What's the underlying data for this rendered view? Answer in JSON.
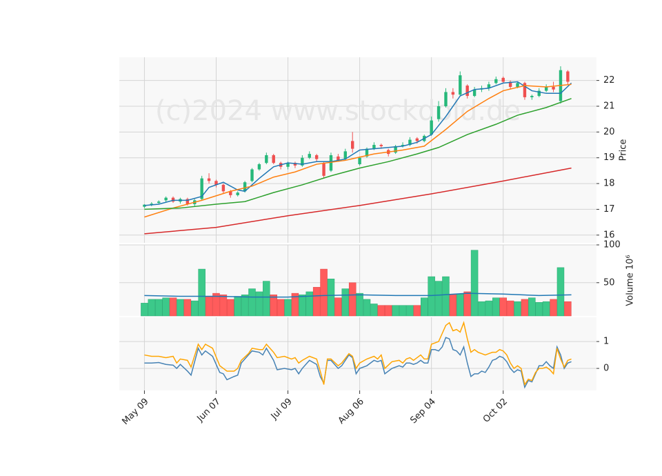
{
  "chart_data": [
    {
      "type": "candlestick",
      "watermark": "(c)2024 www.stockdold.de",
      "ylabel": "Price",
      "ylim": [
        15.7,
        22.9
      ],
      "yticks": [
        16,
        17,
        18,
        19,
        20,
        21,
        22
      ],
      "grid": true,
      "up_color": "#26b87a",
      "down_color": "#ef4f4f",
      "x": [
        0,
        2,
        4,
        6,
        8,
        10,
        12,
        14,
        16,
        18,
        20,
        22,
        24,
        26,
        28,
        30,
        32,
        34,
        36,
        38,
        40,
        42,
        44,
        46,
        48,
        50,
        52,
        54,
        56,
        58,
        60,
        62,
        64,
        66,
        68,
        70,
        72,
        74,
        76,
        78,
        80,
        82,
        84,
        86,
        88,
        90,
        92,
        94,
        96,
        98,
        100,
        102,
        104,
        106,
        108,
        110,
        112,
        114,
        116,
        118
      ],
      "open": [
        17.1,
        17.18,
        17.25,
        17.35,
        17.45,
        17.3,
        17.4,
        17.2,
        17.4,
        18.2,
        18.1,
        17.95,
        17.7,
        17.55,
        17.7,
        18.1,
        18.55,
        18.8,
        19.1,
        18.8,
        18.65,
        18.8,
        18.7,
        19.0,
        19.1,
        18.8,
        18.5,
        19.05,
        18.95,
        19.65,
        18.75,
        19.05,
        19.35,
        19.5,
        19.3,
        19.2,
        19.45,
        19.5,
        19.75,
        19.65,
        19.9,
        20.5,
        21.0,
        21.55,
        21.45,
        21.8,
        21.4,
        21.65,
        21.7,
        21.9,
        22.1,
        21.95,
        21.75,
        21.9,
        21.35,
        21.4,
        21.6,
        21.75,
        21.2,
        22.35
      ],
      "high": [
        17.2,
        17.28,
        17.35,
        17.5,
        17.5,
        17.45,
        17.45,
        17.4,
        18.3,
        18.4,
        18.15,
        18.0,
        17.75,
        17.7,
        18.1,
        18.6,
        18.8,
        19.2,
        19.15,
        18.85,
        18.85,
        18.85,
        19.1,
        19.25,
        19.15,
        18.85,
        19.2,
        19.15,
        19.35,
        20.0,
        19.05,
        19.4,
        19.6,
        19.55,
        19.35,
        19.5,
        19.6,
        19.8,
        19.8,
        19.9,
        20.6,
        21.2,
        21.7,
        21.7,
        22.35,
        21.85,
        21.75,
        21.8,
        21.95,
        22.15,
        22.15,
        22.0,
        21.95,
        21.95,
        21.45,
        21.7,
        21.85,
        21.95,
        22.55,
        22.4
      ],
      "low": [
        17.05,
        17.12,
        17.2,
        17.28,
        17.25,
        17.22,
        17.15,
        17.1,
        17.35,
        18.0,
        17.85,
        17.6,
        17.45,
        17.5,
        17.65,
        18.05,
        18.5,
        18.75,
        18.75,
        18.55,
        18.55,
        18.6,
        18.65,
        18.95,
        18.85,
        18.2,
        18.45,
        18.85,
        18.9,
        19.2,
        18.7,
        19.0,
        19.3,
        19.35,
        19.05,
        19.15,
        19.4,
        19.45,
        19.55,
        19.6,
        19.85,
        20.4,
        20.95,
        21.3,
        21.4,
        21.3,
        21.35,
        21.55,
        21.6,
        21.85,
        21.9,
        21.65,
        21.7,
        21.25,
        21.25,
        21.35,
        21.55,
        21.55,
        21.1,
        21.85
      ],
      "close": [
        17.18,
        17.22,
        17.3,
        17.45,
        17.3,
        17.4,
        17.2,
        17.35,
        18.2,
        18.1,
        17.95,
        17.7,
        17.55,
        17.65,
        18.05,
        18.55,
        18.75,
        19.1,
        18.8,
        18.65,
        18.8,
        18.7,
        19.0,
        19.15,
        18.95,
        18.3,
        19.1,
        18.9,
        19.25,
        19.35,
        19.0,
        19.35,
        19.5,
        19.45,
        19.15,
        19.45,
        19.5,
        19.7,
        19.65,
        19.85,
        20.45,
        21.0,
        21.55,
        21.45,
        22.2,
        21.4,
        21.65,
        21.7,
        21.85,
        22.05,
        21.95,
        21.75,
        21.9,
        21.35,
        21.4,
        21.6,
        21.75,
        21.65,
        22.4,
        21.95
      ],
      "series": [
        {
          "color": "#1f77b4",
          "x": [
            0,
            4,
            8,
            12,
            16,
            18,
            22,
            26,
            28,
            32,
            36,
            40,
            44,
            48,
            52,
            56,
            60,
            64,
            68,
            72,
            76,
            80,
            84,
            88,
            92,
            96,
            100,
            104,
            108,
            112,
            116,
            119
          ],
          "values": [
            17.15,
            17.2,
            17.35,
            17.35,
            17.5,
            17.85,
            18.05,
            17.75,
            17.7,
            18.2,
            18.65,
            18.8,
            18.75,
            18.85,
            18.85,
            18.95,
            19.3,
            19.35,
            19.4,
            19.45,
            19.6,
            19.9,
            20.6,
            21.4,
            21.65,
            21.7,
            21.9,
            21.95,
            21.6,
            21.5,
            21.5,
            21.9
          ]
        },
        {
          "color": "#ff7f0e",
          "x": [
            0,
            8,
            16,
            24,
            30,
            36,
            42,
            48,
            56,
            64,
            72,
            78,
            84,
            90,
            96,
            100,
            106,
            112,
            119
          ],
          "values": [
            16.7,
            17.05,
            17.35,
            17.7,
            17.9,
            18.25,
            18.45,
            18.75,
            18.9,
            19.15,
            19.3,
            19.45,
            20.1,
            20.8,
            21.3,
            21.6,
            21.8,
            21.75,
            21.85
          ]
        },
        {
          "color": "#2ca02c",
          "x": [
            0,
            10,
            20,
            28,
            36,
            44,
            52,
            60,
            68,
            76,
            82,
            90,
            98,
            104,
            112,
            119
          ],
          "values": [
            17.0,
            17.05,
            17.2,
            17.3,
            17.65,
            17.95,
            18.3,
            18.6,
            18.85,
            19.15,
            19.4,
            19.9,
            20.3,
            20.65,
            20.95,
            21.3
          ]
        },
        {
          "color": "#d62728",
          "x": [
            0,
            20,
            40,
            60,
            80,
            100,
            119
          ],
          "values": [
            16.05,
            16.3,
            16.75,
            17.15,
            17.6,
            18.1,
            18.6
          ]
        }
      ]
    },
    {
      "type": "bar",
      "ylabel": "Volume  10⁶",
      "ylim": [
        6,
        100
      ],
      "yticks": [
        50,
        100
      ],
      "grid": true,
      "up_color": "#3cc98a",
      "down_color": "#ff5c5c",
      "values": [
        23,
        28,
        28,
        30,
        30,
        28,
        28,
        26,
        68,
        32,
        36,
        34,
        28,
        32,
        34,
        42,
        38,
        52,
        34,
        28,
        28,
        36,
        34,
        38,
        44,
        68,
        55,
        30,
        42,
        50,
        36,
        28,
        22,
        20,
        20,
        20,
        20,
        20,
        20,
        30,
        58,
        52,
        58,
        35,
        35,
        38,
        93,
        25,
        26,
        30,
        30,
        26,
        25,
        28,
        30,
        24,
        25,
        28,
        70,
        25
      ],
      "series": [
        {
          "color": "#1f77b4",
          "x": [
            0,
            10,
            20,
            30,
            40,
            50,
            60,
            70,
            80,
            90,
            100,
            110,
            119
          ],
          "values": [
            33,
            32,
            32,
            31,
            31,
            33,
            34,
            33,
            33,
            36,
            35,
            33,
            34
          ]
        }
      ]
    },
    {
      "type": "line",
      "ylim": [
        -0.82,
        1.9
      ],
      "yticks": [
        0,
        1
      ],
      "grid": true,
      "xlim": [
        -7,
        126
      ],
      "xticks": [
        {
          "value": 0,
          "label": "May 09"
        },
        {
          "value": 20,
          "label": "Jun 07"
        },
        {
          "value": 40,
          "label": "Jul 09"
        },
        {
          "value": 60,
          "label": "Aug 06"
        },
        {
          "value": 80,
          "label": "Sep 04"
        },
        {
          "value": 100,
          "label": "Oct 02"
        }
      ],
      "x": [
        0,
        2,
        4,
        6,
        8,
        9,
        10,
        12,
        13,
        15,
        16,
        17,
        19,
        21,
        22,
        23,
        25,
        26,
        27,
        29,
        30,
        32,
        33,
        34,
        36,
        37,
        39,
        41,
        42,
        43,
        44,
        46,
        48,
        49,
        50,
        51,
        52,
        54,
        55,
        57,
        58,
        59,
        60,
        62,
        64,
        65,
        66,
        67,
        69,
        71,
        72,
        73,
        74,
        75,
        76,
        77,
        78,
        79,
        80,
        81,
        82,
        83,
        84,
        85,
        86,
        87,
        88,
        89,
        90,
        91,
        92,
        93,
        94,
        95,
        96,
        97,
        98,
        99,
        100,
        101,
        102,
        103,
        104,
        105,
        106,
        107,
        108,
        109,
        110,
        111,
        112,
        113,
        114,
        115,
        116,
        117,
        118,
        119
      ],
      "series": [
        {
          "color": "#4682b4",
          "values": [
            0.2,
            0.2,
            0.22,
            0.15,
            0.12,
            0.0,
            0.15,
            -0.1,
            -0.25,
            0.75,
            0.5,
            0.65,
            0.45,
            -0.15,
            -0.2,
            -0.42,
            -0.3,
            -0.25,
            0.2,
            0.5,
            0.65,
            0.6,
            0.5,
            0.75,
            0.3,
            -0.05,
            0.0,
            -0.05,
            0.0,
            -0.2,
            0.0,
            0.3,
            0.15,
            -0.3,
            -0.55,
            0.3,
            0.3,
            0.0,
            0.1,
            0.5,
            0.4,
            -0.2,
            0.0,
            0.1,
            0.3,
            0.25,
            0.3,
            -0.2,
            0.0,
            0.1,
            0.05,
            0.2,
            0.2,
            0.15,
            0.2,
            0.3,
            0.2,
            0.2,
            0.7,
            0.7,
            0.65,
            0.8,
            1.15,
            1.1,
            0.7,
            0.65,
            0.5,
            0.8,
            0.2,
            -0.3,
            -0.2,
            -0.2,
            -0.1,
            -0.15,
            0.05,
            0.3,
            0.35,
            0.45,
            0.4,
            0.25,
            0.0,
            -0.15,
            -0.05,
            -0.1,
            -0.7,
            -0.45,
            -0.5,
            -0.2,
            0.1,
            0.1,
            0.25,
            0.1,
            0.0,
            0.8,
            0.5,
            0.0,
            0.2,
            0.25
          ]
        },
        {
          "color": "#ffa500",
          "values": [
            0.5,
            0.45,
            0.45,
            0.4,
            0.45,
            0.2,
            0.35,
            0.3,
            0.05,
            0.9,
            0.7,
            0.9,
            0.75,
            0.1,
            0.0,
            -0.1,
            -0.1,
            0.0,
            0.3,
            0.55,
            0.75,
            0.7,
            0.7,
            0.9,
            0.6,
            0.4,
            0.45,
            0.35,
            0.4,
            0.2,
            0.3,
            0.45,
            0.35,
            -0.1,
            -0.6,
            0.35,
            0.35,
            0.1,
            0.2,
            0.55,
            0.45,
            0.0,
            0.2,
            0.35,
            0.45,
            0.35,
            0.5,
            0.0,
            0.25,
            0.3,
            0.2,
            0.35,
            0.4,
            0.3,
            0.4,
            0.5,
            0.35,
            0.35,
            0.9,
            0.95,
            1.0,
            1.3,
            1.6,
            1.7,
            1.4,
            1.45,
            1.35,
            1.7,
            1.1,
            0.6,
            0.7,
            0.6,
            0.55,
            0.5,
            0.55,
            0.6,
            0.6,
            0.7,
            0.65,
            0.5,
            0.2,
            0.0,
            0.1,
            0.0,
            -0.6,
            -0.4,
            -0.45,
            -0.15,
            0.0,
            0.0,
            0.05,
            -0.05,
            -0.2,
            0.75,
            0.35,
            0.05,
            0.3,
            0.35
          ]
        }
      ]
    }
  ]
}
